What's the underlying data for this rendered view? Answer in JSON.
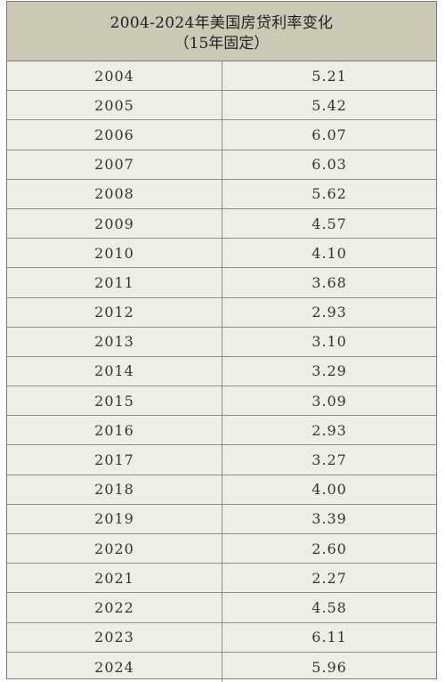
{
  "table": {
    "title": "2004-2024年美国房贷利率变化",
    "subtitle": "（15年固定）"
  },
  "chart_data": {
    "type": "table",
    "title": "2004-2024年美国房贷利率变化",
    "subtitle": "（15年固定）",
    "rows": [
      {
        "year": "2004",
        "rate": "5.21"
      },
      {
        "year": "2005",
        "rate": "5.42"
      },
      {
        "year": "2006",
        "rate": "6.07"
      },
      {
        "year": "2007",
        "rate": "6.03"
      },
      {
        "year": "2008",
        "rate": "5.62"
      },
      {
        "year": "2009",
        "rate": "4.57"
      },
      {
        "year": "2010",
        "rate": "4.10"
      },
      {
        "year": "2011",
        "rate": "3.68"
      },
      {
        "year": "2012",
        "rate": "2.93"
      },
      {
        "year": "2013",
        "rate": "3.10"
      },
      {
        "year": "2014",
        "rate": "3.29"
      },
      {
        "year": "2015",
        "rate": "3.09"
      },
      {
        "year": "2016",
        "rate": "2.93"
      },
      {
        "year": "2017",
        "rate": "3.27"
      },
      {
        "year": "2018",
        "rate": "4.00"
      },
      {
        "year": "2019",
        "rate": "3.39"
      },
      {
        "year": "2020",
        "rate": "2.60"
      },
      {
        "year": "2021",
        "rate": "2.27"
      },
      {
        "year": "2022",
        "rate": "4.58"
      },
      {
        "year": "2023",
        "rate": "6.11"
      },
      {
        "year": "2024",
        "rate": "5.96"
      }
    ]
  }
}
